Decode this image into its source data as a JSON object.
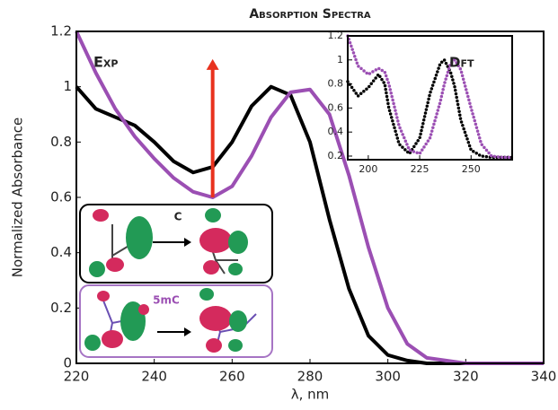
{
  "chart_data": [
    {
      "type": "line",
      "title": "Absorption Spectra",
      "xlabel": "λ, nm",
      "ylabel": "Normalized Absorbance",
      "label": "Exp",
      "x": [
        220,
        225,
        230,
        235,
        240,
        245,
        250,
        255,
        260,
        265,
        270,
        275,
        280,
        285,
        290,
        295,
        300,
        305,
        310,
        320,
        330,
        340
      ],
      "series": [
        {
          "color": "#000000",
          "values": [
            1.0,
            0.92,
            0.89,
            0.86,
            0.8,
            0.73,
            0.69,
            0.71,
            0.8,
            0.93,
            1.0,
            0.97,
            0.8,
            0.52,
            0.27,
            0.1,
            0.03,
            0.01,
            0,
            0,
            0,
            0
          ]
        },
        {
          "color": "#9b4fb3",
          "values": [
            1.2,
            1.05,
            0.92,
            0.82,
            0.74,
            0.67,
            0.62,
            0.6,
            0.64,
            0.75,
            0.89,
            0.98,
            0.99,
            0.9,
            0.68,
            0.42,
            0.2,
            0.07,
            0.02,
            0,
            0,
            0
          ]
        }
      ],
      "arrow": {
        "x": 255,
        "y": [
          0.6,
          1.1
        ],
        "color": "#e8321e"
      },
      "orbital_labels": [
        "C",
        "5mC"
      ],
      "xlim": [
        220,
        340
      ],
      "xticks": [
        220,
        240,
        260,
        280,
        300,
        320,
        340
      ],
      "ylim": [
        0,
        1.2
      ],
      "yticks": [
        0,
        0.2,
        0.4,
        0.6,
        0.8,
        1,
        1.2
      ]
    },
    {
      "type": "line",
      "style": "dotted",
      "label": "Dft",
      "x": [
        190,
        195,
        200,
        205,
        208,
        210,
        215,
        220,
        225,
        230,
        235,
        237,
        240,
        242,
        245,
        250,
        255,
        260,
        265,
        270
      ],
      "series": [
        {
          "color": "#000000",
          "values": [
            0.82,
            0.7,
            0.77,
            0.88,
            0.8,
            0.6,
            0.3,
            0.22,
            0.35,
            0.72,
            0.97,
            1.0,
            0.9,
            0.78,
            0.5,
            0.25,
            0.2,
            0.19,
            0.19,
            0.19
          ]
        },
        {
          "color": "#9b4fb3",
          "values": [
            1.2,
            0.95,
            0.88,
            0.93,
            0.9,
            0.8,
            0.45,
            0.25,
            0.22,
            0.35,
            0.65,
            0.8,
            0.97,
            1.0,
            0.92,
            0.6,
            0.3,
            0.2,
            0.19,
            0.19
          ]
        }
      ],
      "xlim": [
        190,
        270
      ],
      "xticks": [
        200,
        225,
        250
      ],
      "ylim": [
        0.17,
        1.2
      ],
      "yticks": [
        0.2,
        0.4,
        0.6,
        0.8,
        1,
        1.2
      ]
    }
  ]
}
